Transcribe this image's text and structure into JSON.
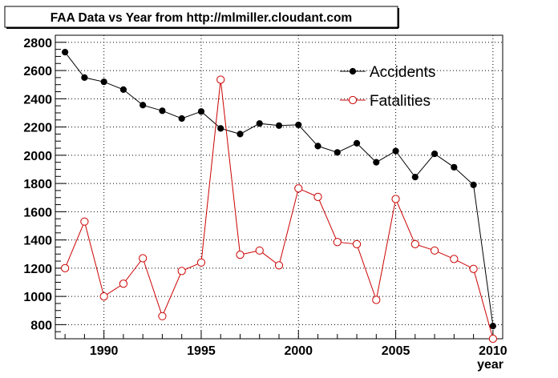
{
  "chart_data": {
    "type": "line",
    "title": "FAA Data vs Year from http://mlmiller.cloudant.com",
    "xlabel": "year",
    "ylabel": "",
    "xlim": [
      1987.5,
      2010.5
    ],
    "ylim": [
      700,
      2850
    ],
    "x_ticks": [
      1990,
      1995,
      2000,
      2005,
      2010
    ],
    "y_ticks": [
      800,
      1000,
      1200,
      1400,
      1600,
      1800,
      2000,
      2200,
      2400,
      2600,
      2800
    ],
    "grid": true,
    "legend_position": "top-right",
    "x": [
      1988,
      1989,
      1990,
      1991,
      1992,
      1993,
      1994,
      1995,
      1996,
      1997,
      1998,
      1999,
      2000,
      2001,
      2002,
      2003,
      2004,
      2005,
      2006,
      2007,
      2008,
      2009,
      2010
    ],
    "series": [
      {
        "name": "Accidents",
        "color": "#000000",
        "marker": "filled-circle",
        "values": [
          2730,
          2550,
          2520,
          2465,
          2355,
          2315,
          2260,
          2310,
          2190,
          2150,
          2225,
          2210,
          2215,
          2065,
          2020,
          2085,
          1950,
          2030,
          1845,
          2010,
          1915,
          1790,
          790
        ]
      },
      {
        "name": "Fatalities",
        "color": "#cc0000",
        "marker": "open-circle",
        "values": [
          1200,
          1530,
          1000,
          1090,
          1270,
          860,
          1180,
          1240,
          2535,
          1295,
          1325,
          1220,
          1765,
          1705,
          1385,
          1370,
          975,
          1690,
          1370,
          1325,
          1265,
          1195,
          700
        ]
      }
    ]
  }
}
